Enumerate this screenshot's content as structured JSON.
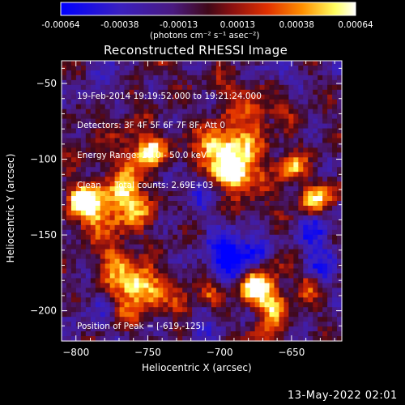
{
  "colorbar": {
    "tick_labels": [
      "-0.00064",
      "-0.00038",
      "-0.00013",
      "0.00013",
      "0.00038",
      "0.00064"
    ],
    "units": "(photons cm⁻² s⁻¹ asec⁻²)",
    "range": [
      -0.00064,
      0.00064
    ],
    "colors": {
      "low": "#0000ff",
      "midlow": "#4a1a8a",
      "mid": "#7a1020",
      "midhigh": "#ff6000",
      "high": "#ffff80",
      "top": "#ffffff"
    }
  },
  "chart_data": {
    "type": "heatmap",
    "title": "Reconstructed RHESSI Image",
    "xlabel": "Heliocentric X (arcsec)",
    "ylabel": "Heliocentric Y (arcsec)",
    "xlim": [
      -810,
      -615
    ],
    "ylim": [
      -220,
      -35
    ],
    "xticks": [
      -800,
      -750,
      -700,
      -650
    ],
    "yticks": [
      -50,
      -100,
      -150,
      -200
    ],
    "xtick_labels": [
      "−800",
      "−750",
      "−700",
      "−650"
    ],
    "ytick_labels": [
      "−50",
      "−100",
      "−150",
      "−200"
    ],
    "info_lines": [
      "19-Feb-2014 19:19:52.000 to 19:21:24.000",
      "Detectors: 3F 4F 5F 6F 7F 8F, Att 0",
      "Energy Range: 25.0 - 50.0 keV",
      "Clean     Total counts: 2.69E+03"
    ],
    "peak_text": "Position of Peak = [-619,-125]",
    "peak_position": [
      -619,
      -125
    ]
  },
  "footer": {
    "date": "13-May-2022 02:01"
  }
}
